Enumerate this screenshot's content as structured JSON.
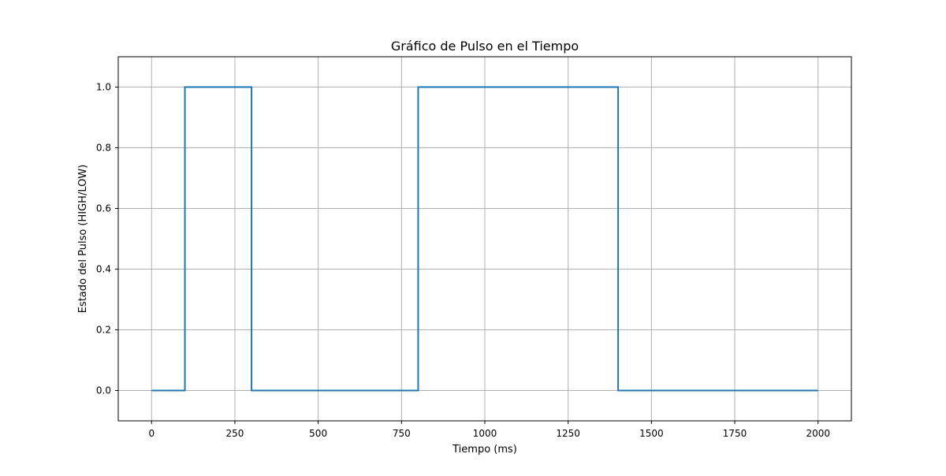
{
  "chart_data": {
    "type": "line",
    "step": "post",
    "title": "Gráfico de Pulso en el Tiempo",
    "xlabel": "Tiempo (ms)",
    "ylabel": "Estado del Pulso (HIGH/LOW)",
    "xlim": [
      -100,
      2100
    ],
    "ylim": [
      -0.1,
      1.1
    ],
    "xticks": [
      0,
      250,
      500,
      750,
      1000,
      1250,
      1500,
      1750,
      2000
    ],
    "yticks": [
      0.0,
      0.2,
      0.4,
      0.6,
      0.8,
      1.0
    ],
    "xtick_labels": [
      "0",
      "250",
      "500",
      "750",
      "1000",
      "1250",
      "1500",
      "1750",
      "2000"
    ],
    "ytick_labels": [
      "0.0",
      "0.2",
      "0.4",
      "0.6",
      "0.8",
      "1.0"
    ],
    "grid": true,
    "series": [
      {
        "color": "#1f77b4",
        "x": [
          0,
          100,
          300,
          800,
          1400,
          2000
        ],
        "y": [
          0,
          1,
          0,
          1,
          0,
          0
        ]
      }
    ]
  }
}
